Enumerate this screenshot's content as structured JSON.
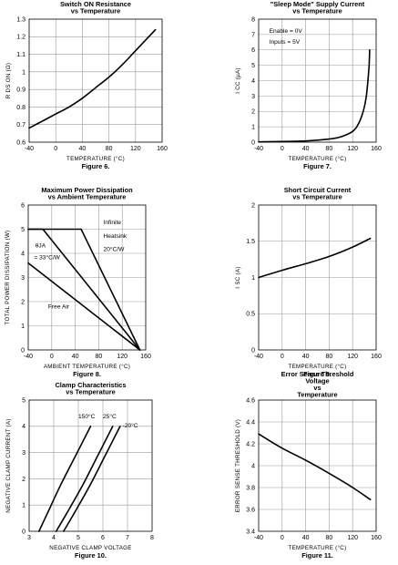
{
  "chart_data": [
    {
      "type": "line",
      "title": "Switch ON Resistance",
      "subtitle": "vs Temperature",
      "xlabel": "TEMPERATURE (°C)",
      "ylabel": "R DS ON (Ω)",
      "figure": "Figure 6.",
      "xlim": [
        -40,
        160
      ],
      "ylim": [
        0.6,
        1.3
      ],
      "xticks": [
        -40,
        0,
        40,
        80,
        120,
        160
      ],
      "yticks": [
        0.6,
        0.7,
        0.8,
        0.9,
        1.0,
        1.1,
        1.2,
        1.3
      ],
      "xtick_labels": [
        "-40",
        "0",
        "40",
        "80",
        "120",
        "160"
      ],
      "ytick_labels": [
        "0.6",
        "0.7",
        "0.8",
        "0.9",
        "1",
        "1.1",
        "1.2",
        "1.3"
      ],
      "grid": true,
      "series": [
        {
          "x": [
            -40,
            -20,
            0,
            20,
            40,
            60,
            80,
            100,
            120,
            150
          ],
          "y": [
            0.68,
            0.72,
            0.76,
            0.8,
            0.85,
            0.91,
            0.97,
            1.04,
            1.12,
            1.24
          ]
        }
      ],
      "annotations": []
    },
    {
      "type": "line",
      "title": "\"Sleep Mode\" Supply Current",
      "subtitle": "vs Temperature",
      "xlabel": "TEMPERATURE (°C)",
      "ylabel": "I CC (µA)",
      "figure": "Figure 7.",
      "xlim": [
        -40,
        160
      ],
      "ylim": [
        0,
        8
      ],
      "xticks": [
        -40,
        0,
        40,
        80,
        120,
        160
      ],
      "yticks": [
        0,
        1,
        2,
        3,
        4,
        5,
        6,
        7,
        8
      ],
      "xtick_labels": [
        "-40",
        "0",
        "40",
        "80",
        "120",
        "160"
      ],
      "ytick_labels": [
        "0",
        "1",
        "2",
        "3",
        "4",
        "5",
        "6",
        "7",
        "8"
      ],
      "grid": true,
      "series": [
        {
          "x": [
            -40,
            0,
            40,
            80,
            100,
            120,
            130,
            138,
            143,
            146,
            148,
            149
          ],
          "y": [
            0.02,
            0.04,
            0.08,
            0.2,
            0.35,
            0.7,
            1.2,
            2.0,
            2.9,
            4.0,
            5.0,
            6.0
          ]
        }
      ],
      "annotations": [
        {
          "text": "Enable = 0V",
          "x": -22,
          "y": 7.1
        },
        {
          "text": "Inputs = 5V",
          "x": -22,
          "y": 6.4
        }
      ]
    },
    {
      "type": "line",
      "title": "Maximum Power Dissipation",
      "subtitle": "vs Ambient Temperature",
      "xlabel": "AMBIENT TEMPERATURE (°C)",
      "ylabel": "TOTAL POWER DISSIPATION (W)",
      "figure": "Figure 8.",
      "xlim": [
        -40,
        160
      ],
      "ylim": [
        0,
        6
      ],
      "xticks": [
        -40,
        0,
        40,
        80,
        120,
        160
      ],
      "yticks": [
        0,
        1,
        2,
        3,
        4,
        5,
        6
      ],
      "xtick_labels": [
        "-40",
        "0",
        "40",
        "80",
        "120",
        "160"
      ],
      "ytick_labels": [
        "0",
        "1",
        "2",
        "3",
        "4",
        "5",
        "6"
      ],
      "grid": true,
      "series": [
        {
          "name": "Infinite Heatsink",
          "x": [
            -40,
            50,
            150
          ],
          "y": [
            5,
            5,
            0
          ]
        },
        {
          "name": "θJA = 33°C/W",
          "x": [
            -40,
            -15,
            150
          ],
          "y": [
            5,
            5,
            0
          ]
        },
        {
          "name": "Free Air",
          "x": [
            -40,
            150
          ],
          "y": [
            3.6,
            0
          ]
        }
      ],
      "annotations": [
        {
          "text": "Infinite",
          "x": 88,
          "y": 5.2
        },
        {
          "text": "Heatsink",
          "x": 88,
          "y": 4.65
        },
        {
          "text": "20°C/W",
          "x": 88,
          "y": 4.1
        },
        {
          "text": "θJA",
          "x": -28,
          "y": 4.25
        },
        {
          "text": "= 33°C/W",
          "x": -30,
          "y": 3.75
        },
        {
          "text": "Free Air",
          "x": -6,
          "y": 1.72
        }
      ]
    },
    {
      "type": "line",
      "title": "Short Circuit Current",
      "subtitle": "vs Temperature",
      "xlabel": "TEMPERATURE (°C)",
      "ylabel": "I SC (A)",
      "figure": "Figure 9.",
      "xlim": [
        -40,
        160
      ],
      "ylim": [
        0,
        2
      ],
      "xticks": [
        -40,
        0,
        40,
        80,
        120,
        160
      ],
      "yticks": [
        0,
        0.5,
        1,
        1.5,
        2
      ],
      "xtick_labels": [
        "-40",
        "0",
        "40",
        "80",
        "120",
        "160"
      ],
      "ytick_labels": [
        "0",
        "0.5",
        "1",
        "1.5",
        "2"
      ],
      "grid": true,
      "series": [
        {
          "x": [
            -40,
            0,
            40,
            80,
            120,
            150
          ],
          "y": [
            1.0,
            1.1,
            1.19,
            1.29,
            1.42,
            1.54
          ]
        }
      ],
      "annotations": []
    },
    {
      "type": "line",
      "title": "Clamp Characteristics",
      "subtitle": "vs Temperature",
      "xlabel": "NEGATIVE CLAMP VOLTAGE",
      "ylabel": "NEGATIVE CLAMP CURRENT (A)",
      "figure": "Figure 10.",
      "xlim": [
        3,
        8
      ],
      "ylim": [
        0,
        5
      ],
      "xticks": [
        3,
        4,
        5,
        6,
        7,
        8
      ],
      "yticks": [
        0,
        1,
        2,
        3,
        4,
        5
      ],
      "xtick_labels": [
        "3",
        "4",
        "5",
        "6",
        "7",
        "8"
      ],
      "ytick_labels": [
        "0",
        "1",
        "2",
        "3",
        "4",
        "5"
      ],
      "grid": true,
      "series": [
        {
          "name": "150°C",
          "x": [
            3.4,
            3.8,
            4.3,
            4.9,
            5.5
          ],
          "y": [
            0,
            0.8,
            1.8,
            2.9,
            4.0
          ]
        },
        {
          "name": "25°C",
          "x": [
            4.1,
            4.6,
            5.2,
            5.8,
            6.4
          ],
          "y": [
            0,
            0.8,
            1.8,
            2.9,
            4.0
          ]
        },
        {
          "name": "-20°C",
          "x": [
            4.4,
            4.9,
            5.5,
            6.1,
            6.7
          ],
          "y": [
            0,
            0.8,
            1.8,
            2.9,
            4.0
          ]
        }
      ],
      "annotations": [
        {
          "text": "150°C",
          "x": 5.0,
          "y": 4.3
        },
        {
          "text": "25°C",
          "x": 6.0,
          "y": 4.3
        },
        {
          "text": "-20°C",
          "x": 6.8,
          "y": 3.95
        }
      ]
    },
    {
      "type": "line",
      "title": "Error Sense Threshold Voltage",
      "subtitle": "vs Temperature",
      "xlabel": "TEMPERATURE (°C)",
      "ylabel": "ERROR SENSE THRESHOLD (V)",
      "figure": "Figure 11.",
      "xlim": [
        -40,
        160
      ],
      "ylim": [
        3.4,
        4.6
      ],
      "xticks": [
        -40,
        0,
        40,
        80,
        120,
        160
      ],
      "yticks": [
        3.4,
        3.6,
        3.8,
        4.0,
        4.2,
        4.4,
        4.6
      ],
      "xtick_labels": [
        "-40",
        "0",
        "40",
        "80",
        "120",
        "160"
      ],
      "ytick_labels": [
        "3.4",
        "3.6",
        "3.8",
        "4",
        "4.2",
        "4.4",
        "4.6"
      ],
      "grid": true,
      "series": [
        {
          "x": [
            -40,
            0,
            40,
            80,
            120,
            150
          ],
          "y": [
            4.29,
            4.16,
            4.05,
            3.93,
            3.8,
            3.69
          ]
        }
      ],
      "annotations": []
    }
  ]
}
